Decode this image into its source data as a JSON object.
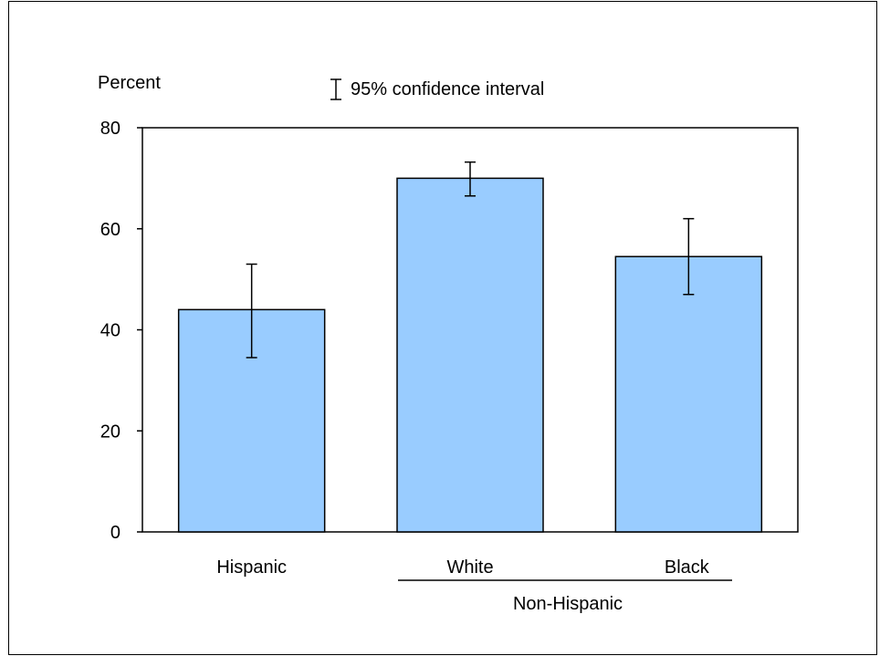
{
  "chart_data": {
    "type": "bar",
    "ylabel": "Percent",
    "ylim": [
      0,
      80
    ],
    "yticks": [
      0,
      20,
      40,
      60,
      80
    ],
    "categories": [
      "Hispanic",
      "White",
      "Black"
    ],
    "values": [
      44,
      70,
      54.5
    ],
    "ci_lower": [
      34.5,
      66.5,
      47
    ],
    "ci_upper": [
      53,
      73.2,
      62
    ],
    "group_label": "Non-Hispanic",
    "legend_text": "95% confidence interval",
    "bar_color": "#99ccff",
    "grid": false
  }
}
